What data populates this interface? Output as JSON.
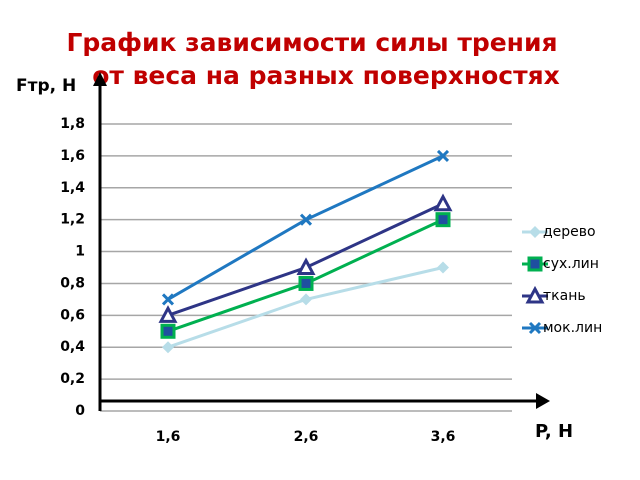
{
  "chart_data": {
    "type": "line",
    "title": [
      "График зависимости силы трения",
      "от веса на разных поверхностях"
    ],
    "y_label": "Fтр, Н",
    "x_label": "P, H",
    "categories": [
      "1,6",
      "2,6",
      "3,6"
    ],
    "series": [
      {
        "name": "дерево",
        "color": "#b7dde8",
        "marker": "diamond",
        "values": [
          0.4,
          0.7,
          0.9
        ]
      },
      {
        "name": "сух.лин",
        "color": "#00b050",
        "marker": "square",
        "values": [
          0.5,
          0.8,
          1.2
        ]
      },
      {
        "name": "ткань",
        "color": "#2e3586",
        "marker": "triangle",
        "values": [
          0.6,
          0.9,
          1.3
        ]
      },
      {
        "name": "мок.лин",
        "color": "#1f78c1",
        "marker": "x",
        "values": [
          0.7,
          1.2,
          1.6
        ]
      }
    ],
    "ylim": [
      0,
      1.8
    ],
    "yticks": [
      0,
      {
        "value": 0.2,
        "label": "0,2"
      },
      {
        "value": 0.4,
        "label": "0,4"
      },
      {
        "value": 0.6,
        "label": "0,6"
      },
      {
        "value": 0.8,
        "label": "0,8"
      },
      1,
      {
        "value": 1.2,
        "label": "1,2"
      },
      {
        "value": 1.4,
        "label": "1,4"
      },
      {
        "value": 1.6,
        "label": "1,6"
      },
      {
        "value": 1.8,
        "label": "1,8"
      }
    ],
    "grid": true,
    "legend": "right"
  }
}
